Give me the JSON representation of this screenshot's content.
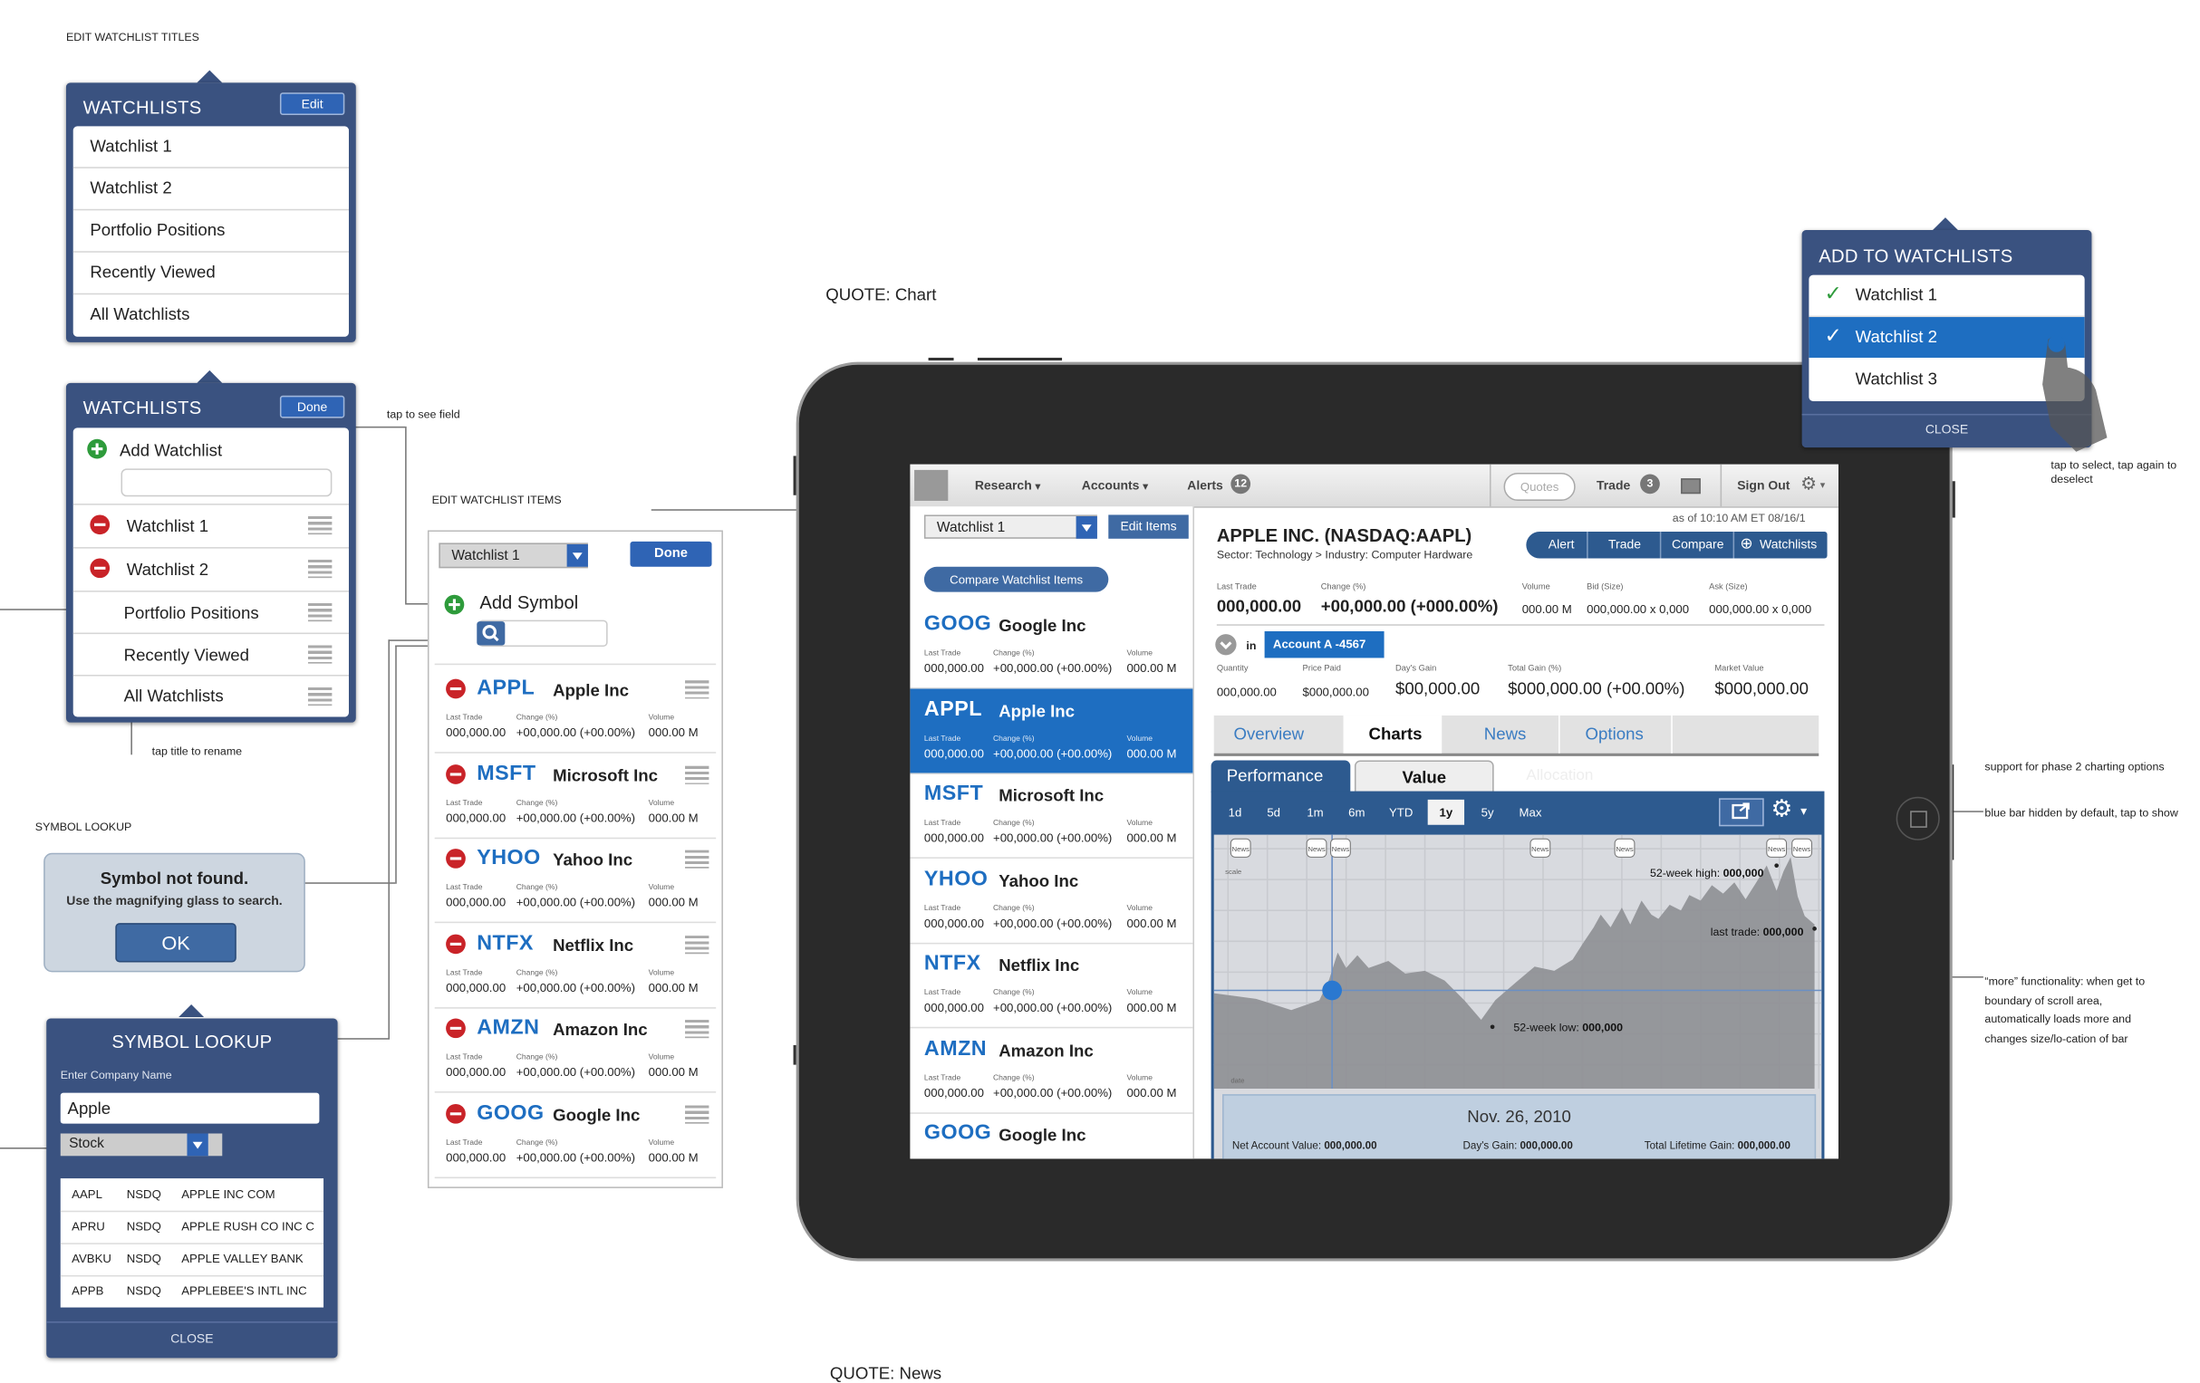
{
  "annotations": {
    "edit_watchlist_titles": "EDIT WATCHLIST TITLES",
    "quote_chart": "QUOTE: Chart",
    "edit_watchlist_items": "EDIT WATCHLIST ITEMS",
    "tap_to_see_field": "tap to see field",
    "tap_title_to_rename": "tap title to rename",
    "symbol_lookup_caption": "SYMBOL LOOKUP",
    "tap_to_select": "tap to select, tap again to deselect",
    "phase2": "support for phase 2 charting options",
    "blue_bar": "blue bar hidden by default, tap to show",
    "more_func": "“more” functionality: when get to boundary of scroll area, automatically loads more and changes size/lo-cation of bar",
    "quote_news": "QUOTE: News"
  },
  "watchlists_panel_1": {
    "title": "WATCHLISTS",
    "edit_label": "Edit",
    "items": [
      "Watchlist 1",
      "Watchlist 2",
      "Portfolio Positions",
      "Recently Viewed",
      "All Watchlists"
    ]
  },
  "watchlists_panel_2": {
    "title": "WATCHLISTS",
    "done_label": "Done",
    "add_label": "Add Watchlist",
    "items": [
      "Watchlist 1",
      "Watchlist 2",
      "Portfolio Positions",
      "Recently Viewed",
      "All Watchlists"
    ]
  },
  "symbol_alert": {
    "title": "Symbol not found.",
    "message": "Use the magnifying glass to search.",
    "ok_label": "OK"
  },
  "symbol_lookup": {
    "title": "SYMBOL LOOKUP",
    "enter_label": "Enter Company Name",
    "query": "Apple",
    "type": "Stock",
    "results": [
      {
        "sym": "AAPL",
        "exch": "NSDQ",
        "name": "APPLE INC COM"
      },
      {
        "sym": "APRU",
        "exch": "NSDQ",
        "name": "APPLE RUSH CO INC C"
      },
      {
        "sym": "AVBKU",
        "exch": "NSDQ",
        "name": "APPLE VALLEY BANK"
      },
      {
        "sym": "APPB",
        "exch": "NSDQ",
        "name": "APPLEBEE'S INTL INC"
      }
    ],
    "close_label": "CLOSE"
  },
  "edit_items": {
    "watchlist": "Watchlist 1",
    "done_label": "Done",
    "add_symbol": "Add Symbol",
    "headers": {
      "last": "Last Trade",
      "change": "Change (%)",
      "volume": "Volume"
    },
    "row_values": {
      "last": "000,000.00",
      "change": "+00,000.00 (+00.00%)",
      "volume": "000.00 M"
    },
    "stocks": [
      {
        "sym": "APPL",
        "name": "Apple Inc"
      },
      {
        "sym": "MSFT",
        "name": "Microsoft Inc"
      },
      {
        "sym": "YHOO",
        "name": "Yahoo Inc"
      },
      {
        "sym": "NTFX",
        "name": "Netflix Inc"
      },
      {
        "sym": "AMZN",
        "name": "Amazon Inc"
      },
      {
        "sym": "GOOG",
        "name": "Google Inc"
      }
    ]
  },
  "add_to_watchlists": {
    "title": "ADD TO WATCHLISTS",
    "items": [
      "Watchlist 1",
      "Watchlist 2",
      "Watchlist 3"
    ],
    "close_label": "CLOSE",
    "selected": [
      "Watchlist 1",
      "Watchlist 2"
    ]
  },
  "app": {
    "nav": {
      "research": "Research",
      "accounts": "Accounts",
      "alerts": "Alerts",
      "alerts_count": "12",
      "quotes_placeholder": "Quotes",
      "trade": "Trade",
      "trade_count": "3",
      "sign_out": "Sign Out"
    },
    "watchlist": "Watchlist 1",
    "edit_items": "Edit Items",
    "compare": "Compare Watchlist Items",
    "list_headers": {
      "last": "Last Trade",
      "change": "Change (%)",
      "volume": "Volume"
    },
    "list_values": {
      "last": "000,000.00",
      "change": "+00,000.00 (+00.00%)",
      "volume": "000.00 M"
    },
    "stocks": [
      {
        "sym": "GOOG",
        "name": "Google Inc"
      },
      {
        "sym": "APPL",
        "name": "Apple Inc"
      },
      {
        "sym": "MSFT",
        "name": "Microsoft Inc"
      },
      {
        "sym": "YHOO",
        "name": "Yahoo Inc"
      },
      {
        "sym": "NTFX",
        "name": "Netflix Inc"
      },
      {
        "sym": "AMZN",
        "name": "Amazon Inc"
      },
      {
        "sym": "GOOG",
        "name": "Google Inc"
      }
    ],
    "quote": {
      "title": "APPLE INC. (NASDAQ:AAPL)",
      "as_of": "as of 10:10 AM ET 08/16/1",
      "sector": "Sector: Technology > Industry: Computer Hardware",
      "actions": [
        "Alert",
        "Trade",
        "Compare",
        "Watchlists"
      ],
      "labels": {
        "last": "Last Trade",
        "change": "Change (%)",
        "volume": "Volume",
        "bid": "Bid (Size)",
        "ask": "Ask (Size)"
      },
      "values": {
        "last": "000,000.00",
        "change": "+00,000.00 (+000.00%)",
        "volume": "000.00 M",
        "bid": "000,000.00 x 0,000",
        "ask": "000,000.00 x 0,000"
      },
      "in_label": "in",
      "account": "Account A -4567",
      "pos_labels": {
        "qty": "Quantity",
        "price": "Price Paid",
        "day_gain": "Day's Gain",
        "total_gain": "Total Gain (%)",
        "market": "Market Value"
      },
      "pos_values": {
        "qty": "000,000.00",
        "price": "$000,000.00",
        "day_gain": "$00,000.00",
        "total_gain": "$000,000.00 (+00.00%)",
        "market": "$000,000.00"
      }
    },
    "tabs": [
      "Overview",
      "Charts",
      "News",
      "Options"
    ],
    "subtabs": [
      "Performance",
      "Value",
      "Allocation"
    ],
    "ranges": [
      "1d",
      "5d",
      "1m",
      "6m",
      "YTD",
      "1y",
      "5y",
      "Max"
    ],
    "active_range": "1y",
    "chart": {
      "scale_label": "scale",
      "date_label": "date",
      "news_label": "News",
      "high_label": "52-week high:",
      "high_value": "000,000",
      "last_label": "last trade:",
      "last_value": "000,000",
      "low_label": "52-week low:",
      "low_value": "000,000"
    },
    "summary": {
      "date": "Nov. 26, 2010",
      "nav_label": "Net Account Value:",
      "nav_value": "000,000.00",
      "day_label": "Day's Gain:",
      "day_value": "000,000.00",
      "total_label": "Total Lifetime Gain:",
      "total_value": "000,000.00"
    }
  },
  "colors": {
    "navy": "#3a5280",
    "accent": "#1e6ec1",
    "selected_row": "#1e6ec1"
  }
}
